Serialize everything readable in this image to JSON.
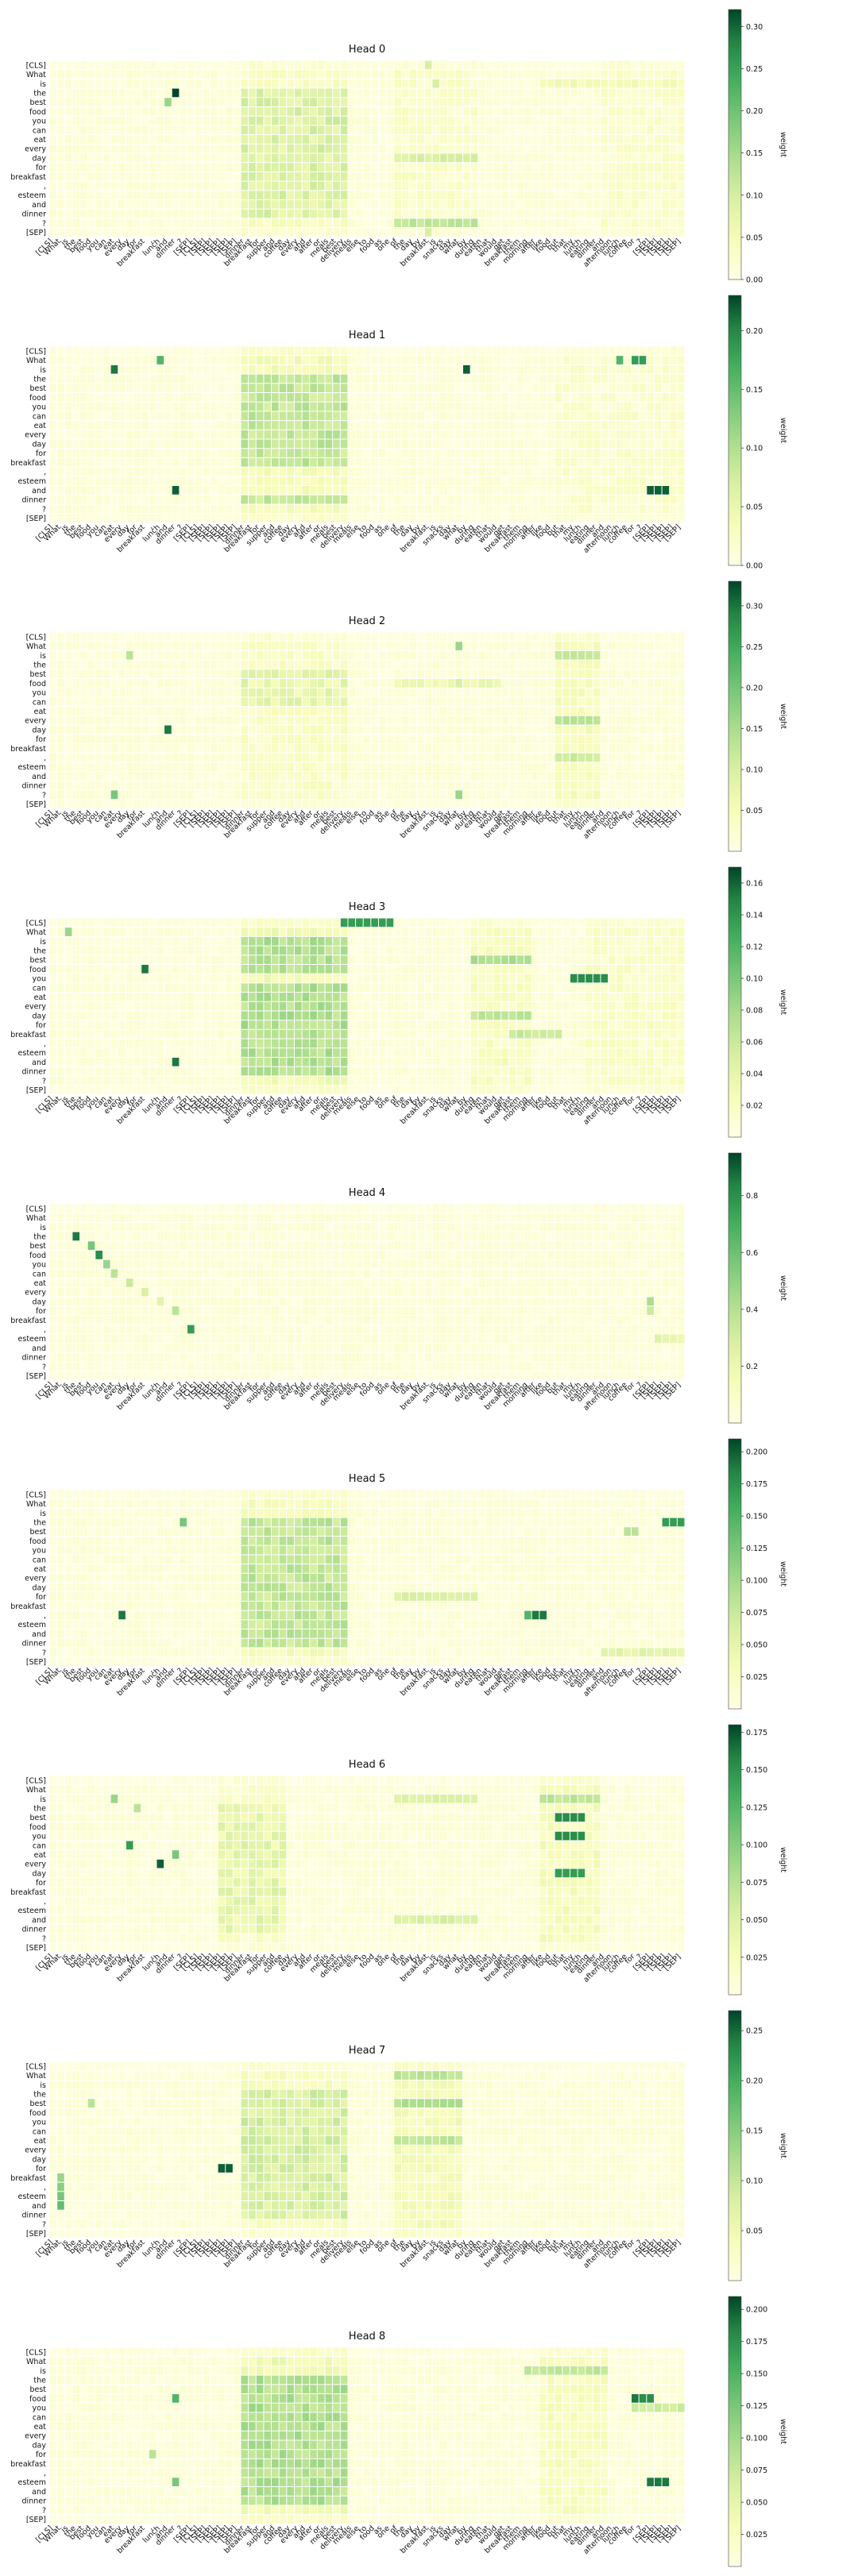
{
  "figure": {
    "colorbar_label": "weight",
    "colors": {
      "low": "#ffffe5",
      "mid": "#addd8e",
      "high": "#004529"
    }
  },
  "chart_data": [
    {
      "type": "heatmap",
      "title": "Head 0",
      "vmax": 0.32,
      "cb_ticks": [
        "0.00",
        "0.05",
        "0.10",
        "0.15",
        "0.20",
        "0.25",
        "0.30"
      ],
      "cb_values": [
        0,
        0.05,
        0.1,
        0.15,
        0.2,
        0.25,
        0.3
      ],
      "hot": [
        [
          3,
          16,
          1.0
        ],
        [
          4,
          15,
          0.5
        ],
        [
          0,
          49,
          0.3
        ],
        [
          2,
          50,
          0.3
        ],
        [
          18,
          49,
          0.3
        ]
      ],
      "stripes": [
        [
          25,
          38,
          0.2
        ],
        [
          45,
          55,
          0.12
        ],
        [
          72,
          82,
          0.1
        ]
      ],
      "block_rows": [
        3,
        4,
        5,
        6,
        7,
        8,
        9,
        10,
        11,
        12,
        13,
        14,
        15,
        16
      ],
      "band_rows": [
        [
          10,
          [
            45,
            55
          ],
          0.25
        ],
        [
          17,
          [
            45,
            55
          ],
          0.35
        ],
        [
          2,
          [
            64,
            82
          ],
          0.12
        ]
      ]
    },
    {
      "type": "heatmap",
      "title": "Head 1",
      "vmax": 0.23,
      "cb_ticks": [
        "0.00",
        "0.05",
        "0.10",
        "0.15",
        "0.20"
      ],
      "cb_values": [
        0,
        0.05,
        0.1,
        0.15,
        0.2
      ],
      "hot": [
        [
          2,
          8,
          0.9
        ],
        [
          1,
          14,
          0.7
        ],
        [
          2,
          54,
          0.95
        ],
        [
          1,
          74,
          0.7
        ],
        [
          1,
          76,
          0.8
        ],
        [
          1,
          77,
          0.8
        ],
        [
          15,
          16,
          0.95
        ],
        [
          15,
          78,
          0.95
        ],
        [
          15,
          79,
          0.95
        ],
        [
          15,
          80,
          0.95
        ]
      ],
      "stripes": [
        [
          25,
          38,
          0.3
        ],
        [
          66,
          82,
          0.08
        ]
      ],
      "block_rows": [
        3,
        4,
        5,
        6,
        7,
        8,
        9,
        10,
        11,
        12,
        16
      ],
      "band_rows": []
    },
    {
      "type": "heatmap",
      "title": "Head 2",
      "vmax": 0.33,
      "cb_ticks": [
        "0.05",
        "0.10",
        "0.15",
        "0.20",
        "0.25",
        "0.30"
      ],
      "cb_values": [
        0.05,
        0.1,
        0.15,
        0.2,
        0.25,
        0.3
      ],
      "hot": [
        [
          10,
          15,
          0.9
        ],
        [
          17,
          8,
          0.6
        ],
        [
          1,
          53,
          0.5
        ],
        [
          17,
          53,
          0.5
        ],
        [
          2,
          10,
          0.4
        ],
        [
          5,
          53,
          0.3
        ]
      ],
      "stripes": [
        [
          25,
          38,
          0.15
        ],
        [
          66,
          71,
          0.25
        ]
      ],
      "block_rows": [
        4,
        5,
        6,
        7
      ],
      "band_rows": [
        [
          2,
          [
            66,
            71
          ],
          0.35
        ],
        [
          9,
          [
            66,
            71
          ],
          0.35
        ],
        [
          13,
          [
            66,
            71
          ],
          0.3
        ],
        [
          5,
          [
            45,
            58
          ],
          0.15
        ]
      ]
    },
    {
      "type": "heatmap",
      "title": "Head 3",
      "vmax": 0.17,
      "cb_ticks": [
        "0.02",
        "0.04",
        "0.06",
        "0.08",
        "0.10",
        "0.12",
        "0.14",
        "0.16"
      ],
      "cb_values": [
        0.02,
        0.04,
        0.06,
        0.08,
        0.1,
        0.12,
        0.14,
        0.16
      ],
      "hot": [
        [
          0,
          38,
          0.8
        ],
        [
          0,
          39,
          0.8
        ],
        [
          0,
          40,
          0.8
        ],
        [
          0,
          41,
          0.8
        ],
        [
          0,
          42,
          0.8
        ],
        [
          0,
          43,
          0.8
        ],
        [
          0,
          44,
          0.8
        ],
        [
          5,
          12,
          0.9
        ],
        [
          6,
          68,
          0.85
        ],
        [
          6,
          69,
          0.85
        ],
        [
          6,
          70,
          0.85
        ],
        [
          6,
          71,
          0.85
        ],
        [
          6,
          72,
          0.85
        ],
        [
          15,
          16,
          0.9
        ],
        [
          1,
          2,
          0.5
        ]
      ],
      "stripes": [
        [
          25,
          38,
          0.35
        ],
        [
          55,
          62,
          0.2
        ],
        [
          70,
          82,
          0.15
        ]
      ],
      "block_rows": [
        2,
        3,
        4,
        5,
        7,
        8,
        9,
        10,
        11,
        12,
        13,
        14,
        15,
        16
      ],
      "band_rows": [
        [
          4,
          [
            55,
            62
          ],
          0.4
        ],
        [
          10,
          [
            55,
            62
          ],
          0.35
        ],
        [
          12,
          [
            60,
            66
          ],
          0.3
        ]
      ]
    },
    {
      "type": "heatmap",
      "title": "Head 4",
      "vmax": 0.95,
      "cb_ticks": [
        "0.2",
        "0.4",
        "0.6",
        "0.8"
      ],
      "cb_values": [
        0.2,
        0.4,
        0.6,
        0.8
      ],
      "hot": [
        [
          3,
          3,
          0.9
        ],
        [
          4,
          5,
          0.6
        ],
        [
          5,
          6,
          0.85
        ],
        [
          6,
          7,
          0.5
        ],
        [
          7,
          8,
          0.4
        ],
        [
          8,
          10,
          0.35
        ],
        [
          9,
          12,
          0.3
        ],
        [
          10,
          14,
          0.25
        ],
        [
          11,
          16,
          0.4
        ],
        [
          13,
          18,
          0.8
        ],
        [
          10,
          78,
          0.45
        ],
        [
          11,
          78,
          0.35
        ]
      ],
      "stripes": [
        [
          38,
          50,
          0.05
        ]
      ],
      "block_rows": [],
      "band_rows": [
        [
          14,
          [
            79,
            82
          ],
          0.2
        ]
      ]
    },
    {
      "type": "heatmap",
      "title": "Head 5",
      "vmax": 0.21,
      "cb_ticks": [
        "0.025",
        "0.050",
        "0.075",
        "0.100",
        "0.125",
        "0.150",
        "0.175",
        "0.200"
      ],
      "cb_values": [
        0.025,
        0.05,
        0.075,
        0.1,
        0.125,
        0.15,
        0.175,
        0.2
      ],
      "hot": [
        [
          13,
          9,
          0.9
        ],
        [
          13,
          62,
          0.7
        ],
        [
          13,
          63,
          0.9
        ],
        [
          13,
          64,
          0.9
        ],
        [
          3,
          80,
          0.8
        ],
        [
          3,
          81,
          0.8
        ],
        [
          3,
          82,
          0.8
        ],
        [
          3,
          17,
          0.6
        ],
        [
          4,
          75,
          0.4
        ],
        [
          4,
          76,
          0.4
        ]
      ],
      "stripes": [
        [
          25,
          38,
          0.3
        ]
      ],
      "block_rows": [
        3,
        4,
        5,
        6,
        7,
        8,
        9,
        10,
        11,
        12,
        13,
        14,
        15,
        16
      ],
      "band_rows": [
        [
          11,
          [
            45,
            55
          ],
          0.25
        ],
        [
          17,
          [
            72,
            82
          ],
          0.2
        ]
      ]
    },
    {
      "type": "heatmap",
      "title": "Head 6",
      "vmax": 0.18,
      "cb_ticks": [
        "0.025",
        "0.050",
        "0.075",
        "0.100",
        "0.125",
        "0.150",
        "0.175"
      ],
      "cb_values": [
        0.025,
        0.05,
        0.075,
        0.1,
        0.125,
        0.15,
        0.175
      ],
      "hot": [
        [
          9,
          14,
          0.95
        ],
        [
          7,
          10,
          0.8
        ],
        [
          4,
          66,
          0.85
        ],
        [
          4,
          67,
          0.85
        ],
        [
          4,
          68,
          0.85
        ],
        [
          4,
          69,
          0.85
        ],
        [
          6,
          66,
          0.85
        ],
        [
          6,
          67,
          0.85
        ],
        [
          6,
          68,
          0.85
        ],
        [
          6,
          69,
          0.85
        ],
        [
          10,
          66,
          0.8
        ],
        [
          10,
          67,
          0.8
        ],
        [
          10,
          68,
          0.8
        ],
        [
          10,
          69,
          0.8
        ],
        [
          2,
          8,
          0.5
        ],
        [
          8,
          16,
          0.6
        ],
        [
          3,
          11,
          0.4
        ]
      ],
      "stripes": [
        [
          22,
          30,
          0.15
        ],
        [
          64,
          71,
          0.25
        ]
      ],
      "block_rows": [
        3,
        4,
        5,
        6,
        7,
        8,
        9,
        10,
        11,
        12,
        13,
        14,
        15,
        16
      ],
      "band_rows": [
        [
          2,
          [
            45,
            55
          ],
          0.25
        ],
        [
          15,
          [
            45,
            55
          ],
          0.25
        ],
        [
          2,
          [
            64,
            71
          ],
          0.35
        ]
      ]
    },
    {
      "type": "heatmap",
      "title": "Head 7",
      "vmax": 0.27,
      "cb_ticks": [
        "0.05",
        "0.10",
        "0.15",
        "0.20",
        "0.25"
      ],
      "cb_values": [
        0.05,
        0.1,
        0.15,
        0.2,
        0.25
      ],
      "hot": [
        [
          11,
          22,
          0.95
        ],
        [
          11,
          23,
          0.95
        ],
        [
          12,
          1,
          0.5
        ],
        [
          13,
          1,
          0.55
        ],
        [
          14,
          1,
          0.6
        ],
        [
          15,
          1,
          0.65
        ],
        [
          4,
          5,
          0.4
        ]
      ],
      "stripes": [
        [
          25,
          38,
          0.22
        ],
        [
          45,
          53,
          0.3
        ]
      ],
      "block_rows": [
        3,
        4,
        5,
        6,
        7,
        8,
        9,
        10,
        11,
        12,
        13,
        14,
        15,
        16
      ],
      "band_rows": [
        [
          1,
          [
            45,
            53
          ],
          0.35
        ],
        [
          4,
          [
            45,
            53
          ],
          0.4
        ],
        [
          8,
          [
            45,
            53
          ],
          0.35
        ]
      ]
    },
    {
      "type": "heatmap",
      "title": "Head 8",
      "vmax": 0.21,
      "cb_ticks": [
        "0.025",
        "0.050",
        "0.075",
        "0.100",
        "0.125",
        "0.150",
        "0.175",
        "0.200"
      ],
      "cb_values": [
        0.025,
        0.05,
        0.075,
        0.1,
        0.125,
        0.15,
        0.175,
        0.2
      ],
      "hot": [
        [
          5,
          76,
          0.9
        ],
        [
          5,
          77,
          0.85
        ],
        [
          5,
          78,
          0.85
        ],
        [
          14,
          78,
          0.9
        ],
        [
          14,
          79,
          0.9
        ],
        [
          14,
          80,
          0.9
        ],
        [
          5,
          16,
          0.7
        ],
        [
          14,
          16,
          0.6
        ],
        [
          11,
          13,
          0.4
        ]
      ],
      "stripes": [
        [
          25,
          38,
          0.35
        ],
        [
          64,
          72,
          0.22
        ]
      ],
      "block_rows": [
        3,
        4,
        5,
        6,
        7,
        8,
        9,
        10,
        11,
        12,
        13,
        14,
        15,
        16
      ],
      "band_rows": [
        [
          2,
          [
            62,
            72
          ],
          0.35
        ],
        [
          6,
          [
            76,
            82
          ],
          0.3
        ]
      ]
    }
  ],
  "y_labels": [
    "[CLS]",
    "What",
    "is",
    "the",
    "best",
    "food",
    "you",
    "can",
    "eat",
    "every",
    "day",
    "for",
    "breakfast",
    ",",
    "esteem",
    "and",
    "dinner",
    "?",
    "[SEP]"
  ],
  "x_labels": [
    "[CLS]",
    "What",
    "is",
    "the",
    "best",
    "food",
    "you",
    "can",
    "eat",
    "every",
    "day",
    "for",
    "breakfast",
    ",",
    "lunch",
    "and",
    "dinner",
    "?",
    "[SEP]",
    "[CLS]",
    "[SEP]",
    "[SEP]",
    "[SEP]",
    "[SEP]",
    "[SEP]",
    "dinner",
    "breakfast",
    "for",
    "supper",
    "and",
    "coffee",
    "day",
    "every",
    "and",
    "after",
    "or",
    "meals",
    "best",
    "delivery",
    "meals",
    "else",
    "to",
    "food",
    "as",
    "one",
    "of",
    "the",
    "day",
    "by",
    "breakfast",
    "is",
    "snacks",
    "day",
    "what",
    "by",
    "during",
    "eaten",
    "that",
    "would",
    "get",
    "breakfast",
    "them",
    "morning",
    "after",
    "like",
    "food",
    "but",
    "that",
    "my",
    "lunch",
    "eating",
    "dinner",
    "and",
    "afternoon",
    "lunch",
    "coffee",
    "for",
    "?",
    "[SEP]",
    "[SEP]",
    "[SEP]",
    "[SEP]",
    "[SEP]"
  ]
}
